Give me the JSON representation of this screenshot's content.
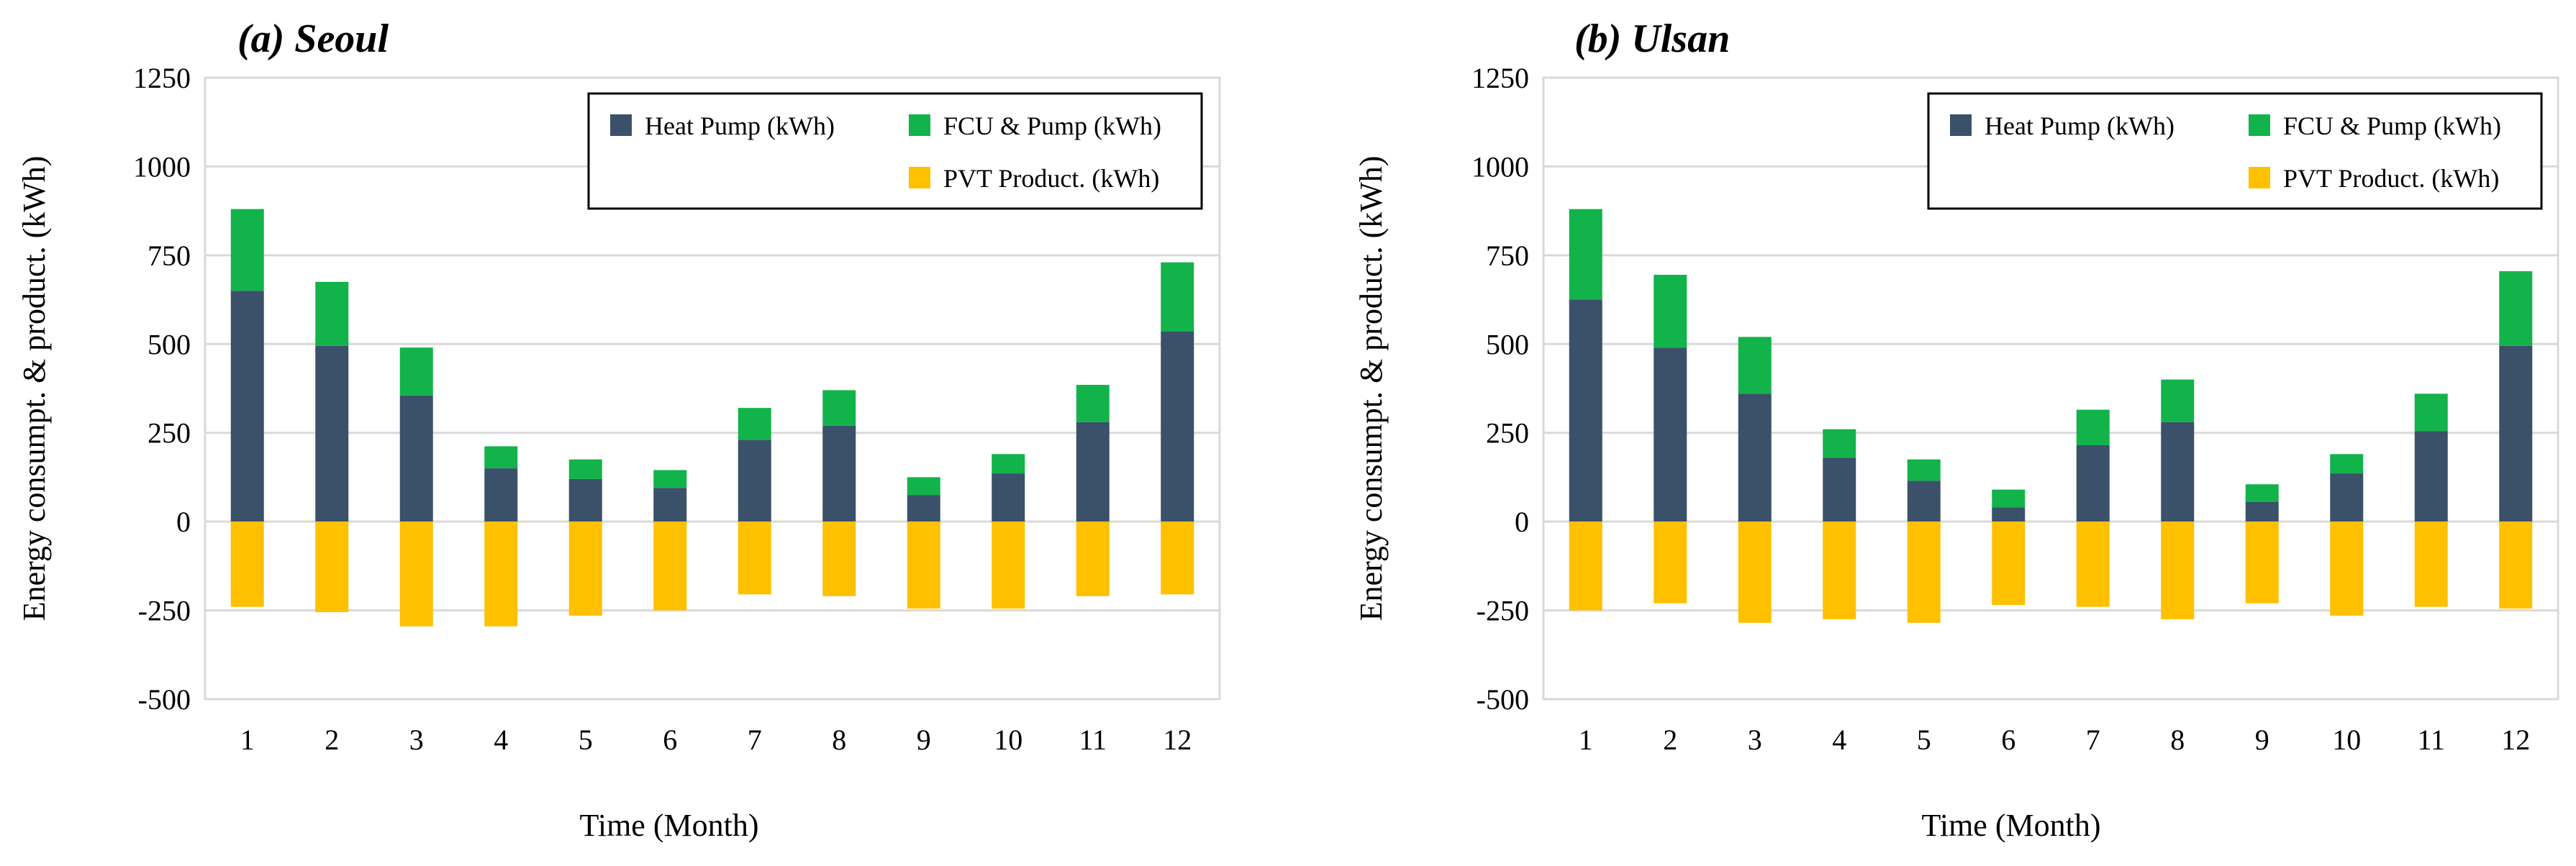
{
  "colors": {
    "heat_pump": "#3a5169",
    "fcu_pump": "#12b34a",
    "pvt_product": "#ffc000",
    "grid": "#d9d9d9"
  },
  "chart_data": [
    {
      "type": "bar",
      "stacked": true,
      "title": "(a) Seoul",
      "xlabel": "Time (Month)",
      "ylabel": "Energy consumpt. & product. (kWh)",
      "ylim": [
        -500,
        1250
      ],
      "yticks": [
        1250,
        1000,
        750,
        500,
        250,
        0,
        -250,
        -500
      ],
      "grid": true,
      "legend_position": "top-right",
      "categories": [
        "1",
        "2",
        "3",
        "4",
        "5",
        "6",
        "7",
        "8",
        "9",
        "10",
        "11",
        "12"
      ],
      "series": [
        {
          "name": "Heat Pump (kWh)",
          "color_key": "heat_pump",
          "values": [
            650,
            495,
            355,
            150,
            120,
            95,
            230,
            270,
            75,
            135,
            280,
            535
          ]
        },
        {
          "name": "FCU & Pump (kWh)",
          "color_key": "fcu_pump",
          "values": [
            230,
            180,
            135,
            62,
            55,
            50,
            90,
            100,
            50,
            55,
            105,
            195
          ]
        },
        {
          "name": "PVT Product. (kWh)",
          "color_key": "pvt_product",
          "values": [
            -240,
            -255,
            -295,
            -295,
            -265,
            -250,
            -205,
            -210,
            -245,
            -245,
            -210,
            -205
          ]
        }
      ]
    },
    {
      "type": "bar",
      "stacked": true,
      "title": "(b) Ulsan",
      "xlabel": "Time (Month)",
      "ylabel": "Energy consumpt. & product. (kWh)",
      "ylim": [
        -500,
        1250
      ],
      "yticks": [
        1250,
        1000,
        750,
        500,
        250,
        0,
        -250,
        -500
      ],
      "grid": true,
      "legend_position": "top-right",
      "categories": [
        "1",
        "2",
        "3",
        "4",
        "5",
        "6",
        "7",
        "8",
        "9",
        "10",
        "11",
        "12"
      ],
      "series": [
        {
          "name": "Heat Pump (kWh)",
          "color_key": "heat_pump",
          "values": [
            625,
            490,
            360,
            180,
            115,
            40,
            215,
            280,
            55,
            135,
            255,
            495
          ]
        },
        {
          "name": "FCU & Pump (kWh)",
          "color_key": "fcu_pump",
          "values": [
            255,
            205,
            160,
            80,
            60,
            50,
            100,
            120,
            50,
            55,
            105,
            210
          ]
        },
        {
          "name": "PVT Product. (kWh)",
          "color_key": "pvt_product",
          "values": [
            -250,
            -230,
            -285,
            -275,
            -285,
            -235,
            -240,
            -275,
            -230,
            -265,
            -240,
            -245
          ]
        }
      ]
    }
  ]
}
